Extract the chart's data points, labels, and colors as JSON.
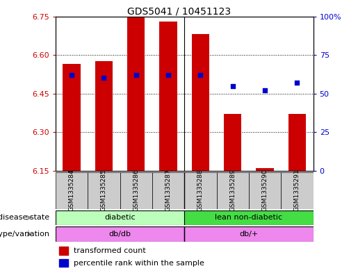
{
  "title": "GDS5041 / 10451123",
  "samples": [
    "GSM1335284",
    "GSM1335285",
    "GSM1335286",
    "GSM1335287",
    "GSM1335288",
    "GSM1335289",
    "GSM1335290",
    "GSM1335291"
  ],
  "bar_values": [
    6.565,
    6.575,
    6.75,
    6.73,
    6.68,
    6.37,
    6.16,
    6.37
  ],
  "percentile_values": [
    62,
    60,
    62,
    62,
    62,
    55,
    52,
    57
  ],
  "ylim_left": [
    6.15,
    6.75
  ],
  "ylim_right": [
    0,
    100
  ],
  "yticks_left": [
    6.15,
    6.3,
    6.45,
    6.6,
    6.75
  ],
  "yticks_right": [
    0,
    25,
    50,
    75,
    100
  ],
  "bar_color": "#cc0000",
  "dot_color": "#0000cc",
  "bar_base": 6.15,
  "disease_state_groups": [
    {
      "label": "diabetic",
      "start": 0,
      "end": 4,
      "color": "#bbffbb"
    },
    {
      "label": "lean non-diabetic",
      "start": 4,
      "end": 8,
      "color": "#44dd44"
    }
  ],
  "genotype_groups": [
    {
      "label": "db/db",
      "start": 0,
      "end": 4,
      "color": "#ee88ee"
    },
    {
      "label": "db/+",
      "start": 4,
      "end": 8,
      "color": "#ee88ee"
    }
  ],
  "disease_state_label": "disease state",
  "genotype_label": "genotype/variation",
  "legend_bar_label": "transformed count",
  "legend_dot_label": "percentile rank within the sample",
  "plot_bg": "#ffffff",
  "label_color_left": "#cc0000",
  "label_color_right": "#0000cc",
  "sample_bg": "#cccccc"
}
